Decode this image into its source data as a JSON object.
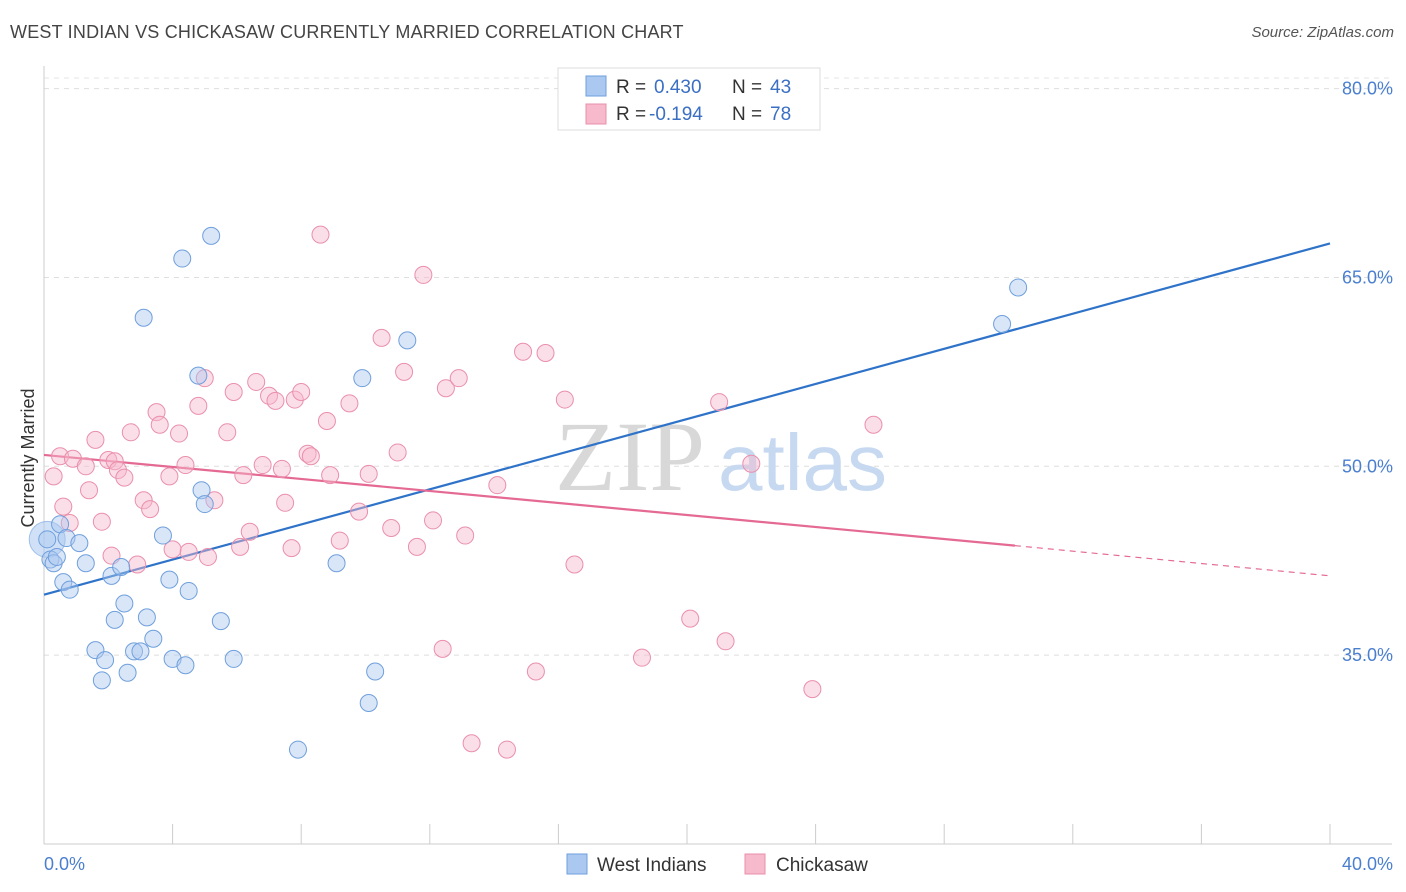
{
  "title": "WEST INDIAN VS CHICKASAW CURRENTLY MARRIED CORRELATION CHART",
  "source": "Source: ZipAtlas.com",
  "watermark": {
    "zip": "ZIP",
    "atlas": "atlas"
  },
  "colors": {
    "west_indians_fill": "#aac8f0",
    "west_indians_stroke": "#6f9fdc",
    "west_indians_line": "#2f73c9",
    "chickasaw_fill": "#f7b9cc",
    "chickasaw_stroke": "#ea8fac",
    "chickasaw_line": "#e56a93",
    "tick_label": "#4a7fd0"
  },
  "legend": {
    "rows": [
      {
        "r_label": "R = ",
        "r_value": "0.430",
        "n_label": "N = ",
        "n_value": "43"
      },
      {
        "r_label": "R = ",
        "r_value": "-0.194",
        "n_label": "N = ",
        "n_value": "78"
      }
    ]
  },
  "chart_data": {
    "type": "scatter",
    "title": "WEST INDIAN VS CHICKASAW CURRENTLY MARRIED CORRELATION CHART",
    "xlabel": "",
    "ylabel": "Currently Married",
    "xlim": [
      0,
      40
    ],
    "ylim": [
      20,
      81
    ],
    "x_tick_labels": [
      "0.0%",
      "40.0%"
    ],
    "y_ticks": [
      35,
      50,
      65,
      80
    ],
    "y_tick_labels": [
      "35.0%",
      "50.0%",
      "65.0%",
      "80.0%"
    ],
    "grid": true,
    "legend_position": "top-center",
    "series": [
      {
        "name": "West Indians",
        "trend": {
          "x": [
            0,
            40
          ],
          "y": [
            39.8,
            67.7
          ]
        },
        "points": [
          [
            0.1,
            44.2
          ],
          [
            0.2,
            42.6
          ],
          [
            0.3,
            42.3
          ],
          [
            0.4,
            42.8
          ],
          [
            0.5,
            45.4
          ],
          [
            0.6,
            40.8
          ],
          [
            0.7,
            44.3
          ],
          [
            0.8,
            40.2
          ],
          [
            1.1,
            43.9
          ],
          [
            1.3,
            42.3
          ],
          [
            1.6,
            35.4
          ],
          [
            1.8,
            33.0
          ],
          [
            1.9,
            34.6
          ],
          [
            2.1,
            41.3
          ],
          [
            2.2,
            37.8
          ],
          [
            2.4,
            42.0
          ],
          [
            2.5,
            39.1
          ],
          [
            2.6,
            33.6
          ],
          [
            2.8,
            35.3
          ],
          [
            3.0,
            35.3
          ],
          [
            3.1,
            61.8
          ],
          [
            3.2,
            38.0
          ],
          [
            3.4,
            36.3
          ],
          [
            3.7,
            44.5
          ],
          [
            3.9,
            41.0
          ],
          [
            4.0,
            34.7
          ],
          [
            4.3,
            66.5
          ],
          [
            4.4,
            34.2
          ],
          [
            4.5,
            40.1
          ],
          [
            4.8,
            57.2
          ],
          [
            4.9,
            48.1
          ],
          [
            5.0,
            47.0
          ],
          [
            5.2,
            68.3
          ],
          [
            5.5,
            37.7
          ],
          [
            5.9,
            34.7
          ],
          [
            7.9,
            27.5
          ],
          [
            9.1,
            42.3
          ],
          [
            9.9,
            57.0
          ],
          [
            10.1,
            31.2
          ],
          [
            10.3,
            33.7
          ],
          [
            11.3,
            60.0
          ],
          [
            29.8,
            61.3
          ],
          [
            30.3,
            64.2
          ]
        ]
      },
      {
        "name": "Chickasaw",
        "trend": {
          "x": [
            0,
            30.2
          ],
          "y": [
            50.9,
            43.7
          ]
        },
        "trend_dashed": {
          "x": [
            30.2,
            40
          ],
          "y": [
            43.7,
            41.3
          ]
        },
        "points": [
          [
            0.3,
            49.2
          ],
          [
            0.5,
            50.8
          ],
          [
            0.6,
            46.8
          ],
          [
            0.8,
            45.5
          ],
          [
            0.9,
            50.6
          ],
          [
            1.3,
            50.0
          ],
          [
            1.4,
            48.1
          ],
          [
            1.6,
            52.1
          ],
          [
            1.8,
            45.6
          ],
          [
            2.0,
            50.5
          ],
          [
            2.1,
            42.9
          ],
          [
            2.2,
            50.4
          ],
          [
            2.3,
            49.7
          ],
          [
            2.5,
            49.1
          ],
          [
            2.7,
            52.7
          ],
          [
            2.9,
            42.2
          ],
          [
            3.1,
            47.3
          ],
          [
            3.3,
            46.6
          ],
          [
            3.5,
            54.3
          ],
          [
            3.6,
            53.3
          ],
          [
            3.9,
            49.2
          ],
          [
            4.0,
            43.4
          ],
          [
            4.2,
            52.6
          ],
          [
            4.4,
            50.1
          ],
          [
            4.5,
            43.2
          ],
          [
            4.8,
            54.8
          ],
          [
            5.0,
            57.0
          ],
          [
            5.1,
            42.8
          ],
          [
            5.3,
            47.3
          ],
          [
            5.7,
            52.7
          ],
          [
            5.9,
            55.9
          ],
          [
            6.1,
            43.6
          ],
          [
            6.2,
            49.3
          ],
          [
            6.4,
            44.8
          ],
          [
            6.6,
            56.7
          ],
          [
            6.8,
            50.1
          ],
          [
            7.0,
            55.6
          ],
          [
            7.2,
            55.2
          ],
          [
            7.4,
            49.8
          ],
          [
            7.5,
            47.1
          ],
          [
            7.7,
            43.5
          ],
          [
            7.8,
            55.3
          ],
          [
            8.0,
            55.9
          ],
          [
            8.2,
            51.0
          ],
          [
            8.3,
            50.8
          ],
          [
            8.6,
            68.4
          ],
          [
            8.8,
            53.6
          ],
          [
            8.9,
            49.3
          ],
          [
            9.2,
            44.1
          ],
          [
            9.5,
            55.0
          ],
          [
            9.8,
            46.4
          ],
          [
            10.1,
            49.4
          ],
          [
            10.5,
            60.2
          ],
          [
            10.8,
            45.1
          ],
          [
            11.0,
            51.1
          ],
          [
            11.2,
            57.5
          ],
          [
            11.6,
            43.6
          ],
          [
            11.8,
            65.2
          ],
          [
            12.1,
            45.7
          ],
          [
            12.4,
            35.5
          ],
          [
            12.5,
            56.2
          ],
          [
            12.9,
            57.0
          ],
          [
            13.1,
            44.5
          ],
          [
            13.3,
            28.0
          ],
          [
            14.1,
            48.5
          ],
          [
            14.4,
            27.5
          ],
          [
            14.9,
            59.1
          ],
          [
            15.3,
            33.7
          ],
          [
            15.6,
            59.0
          ],
          [
            16.2,
            55.3
          ],
          [
            16.5,
            42.2
          ],
          [
            18.6,
            34.8
          ],
          [
            20.1,
            37.9
          ],
          [
            21.0,
            55.1
          ],
          [
            21.2,
            36.1
          ],
          [
            22.0,
            50.2
          ],
          [
            23.9,
            32.3
          ],
          [
            25.8,
            53.3
          ]
        ]
      }
    ]
  }
}
